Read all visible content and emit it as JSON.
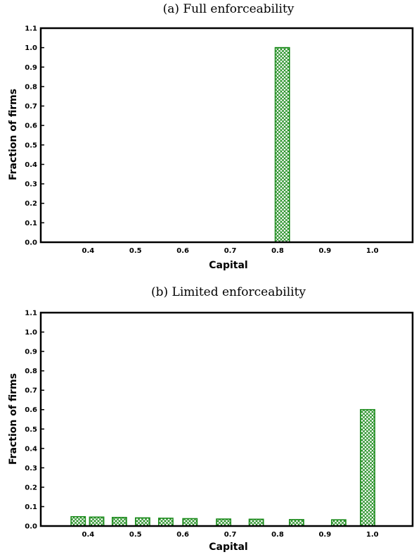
{
  "chart_data": [
    {
      "type": "bar",
      "title": "(a) Full enforceability",
      "xlabel": "Capital",
      "ylabel": "Fraction of firms",
      "xlim": [
        0.3,
        1.085
      ],
      "ylim": [
        0,
        1.1
      ],
      "xticks": [
        "0.4",
        "0.5",
        "0.6",
        "0.7",
        "0.8",
        "0.9",
        "1.0"
      ],
      "yticks": [
        "0.0",
        "0.1",
        "0.2",
        "0.3",
        "0.4",
        "0.5",
        "0.6",
        "0.7",
        "0.8",
        "0.9",
        "1.0",
        "1.1"
      ],
      "bar_width": 0.03,
      "color": "#1a8a1a",
      "bars": [
        {
          "x": 0.81,
          "value": 1.0
        }
      ]
    },
    {
      "type": "bar",
      "title": "(b) Limited enforceability",
      "xlabel": "Capital",
      "ylabel": "Fraction of firms",
      "xlim": [
        0.3,
        1.085
      ],
      "ylim": [
        0,
        1.1
      ],
      "xticks": [
        "0.4",
        "0.5",
        "0.6",
        "0.7",
        "0.8",
        "0.9",
        "1.0"
      ],
      "yticks": [
        "0.0",
        "0.1",
        "0.2",
        "0.3",
        "0.4",
        "0.5",
        "0.6",
        "0.7",
        "0.8",
        "0.9",
        "1.0",
        "1.1"
      ],
      "bar_width": 0.03,
      "color": "#1a8a1a",
      "bars": [
        {
          "x": 0.379,
          "value": 0.048
        },
        {
          "x": 0.418,
          "value": 0.046
        },
        {
          "x": 0.466,
          "value": 0.044
        },
        {
          "x": 0.515,
          "value": 0.042
        },
        {
          "x": 0.564,
          "value": 0.04
        },
        {
          "x": 0.615,
          "value": 0.038
        },
        {
          "x": 0.686,
          "value": 0.036
        },
        {
          "x": 0.755,
          "value": 0.035
        },
        {
          "x": 0.84,
          "value": 0.033
        },
        {
          "x": 0.929,
          "value": 0.032
        },
        {
          "x": 0.99,
          "value": 0.6
        }
      ]
    }
  ]
}
